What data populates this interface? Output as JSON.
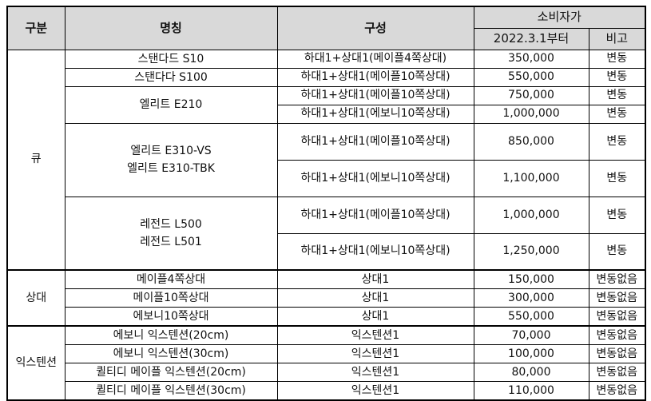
{
  "headers": {
    "group": "구분",
    "name": "명칭",
    "config": "구성",
    "price_group": "소비자가",
    "price_date": "2022.3.1부터",
    "remark": "비고"
  },
  "groups": [
    {
      "label": "큐",
      "products": [
        {
          "names": [
            "스탠다드 S10"
          ],
          "options": [
            {
              "config": "하대1+상대1(메이플4쪽상대)",
              "price": "350,000",
              "remark": "변동"
            }
          ]
        },
        {
          "names": [
            "스탠다다 S100"
          ],
          "options": [
            {
              "config": "하대1+상대1(메이플10쪽상대)",
              "price": "550,000",
              "remark": "변동"
            }
          ]
        },
        {
          "names": [
            "엘리트 E210"
          ],
          "options": [
            {
              "config": "하대1+상대1(메이플10쪽상대)",
              "price": "750,000",
              "remark": "변동"
            },
            {
              "config": "하대1+상대1(에보니10쪽상대)",
              "price": "1,000,000",
              "remark": "변동"
            }
          ]
        },
        {
          "names": [
            "엘리트 E310-VS",
            "엘리트 E310-TBK"
          ],
          "options": [
            {
              "config": "하대1+상대1(메이플10쪽상대)",
              "price": "850,000",
              "remark": "변동"
            },
            {
              "config": "하대1+상대1(에보니10쪽상대)",
              "price": "1,100,000",
              "remark": "변동"
            }
          ]
        },
        {
          "names": [
            "레전드 L500",
            "레전드 L501"
          ],
          "options": [
            {
              "config": "하대1+상대1(메이플10쪽상대)",
              "price": "1,000,000",
              "remark": "변동"
            },
            {
              "config": "하대1+상대1(에보니10쪽상대)",
              "price": "1,250,000",
              "remark": "변동"
            }
          ]
        }
      ]
    },
    {
      "label": "상대",
      "products": [
        {
          "names": [
            "메이플4쪽상대"
          ],
          "options": [
            {
              "config": "상대1",
              "price": "150,000",
              "remark": "변동없음"
            }
          ]
        },
        {
          "names": [
            "메이플10쪽상대"
          ],
          "options": [
            {
              "config": "상대1",
              "price": "300,000",
              "remark": "변동없음"
            }
          ]
        },
        {
          "names": [
            "에보니10쪽상대"
          ],
          "options": [
            {
              "config": "상대1",
              "price": "550,000",
              "remark": "변동없음"
            }
          ]
        }
      ]
    },
    {
      "label": "익스텐션",
      "products": [
        {
          "names": [
            "에보니 익스텐션(20cm)"
          ],
          "options": [
            {
              "config": "익스텐션1",
              "price": "70,000",
              "remark": "변동없음"
            }
          ]
        },
        {
          "names": [
            "에보니 익스텐션(30cm)"
          ],
          "options": [
            {
              "config": "익스텐션1",
              "price": "100,000",
              "remark": "변동없음"
            }
          ]
        },
        {
          "names": [
            "퀼티디 메이플 익스텐션(20cm)"
          ],
          "options": [
            {
              "config": "익스텐션1",
              "price": "80,000",
              "remark": "변동없음"
            }
          ]
        },
        {
          "names": [
            "퀼티디 메이플 익스텐션(30cm)"
          ],
          "options": [
            {
              "config": "익스텐션1",
              "price": "110,000",
              "remark": "변동없음"
            }
          ]
        }
      ]
    }
  ]
}
